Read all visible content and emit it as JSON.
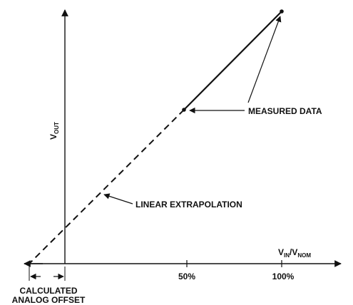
{
  "diagram": {
    "y_axis": {
      "label_main": "V",
      "label_sub": "OUT"
    },
    "x_axis": {
      "label_main_1": "V",
      "label_sub_1": "IN",
      "label_sep": "/V",
      "label_sub_2": "NOM",
      "ticks": [
        "50%",
        "100%"
      ]
    },
    "annotations": {
      "measured_data": "MEASURED DATA",
      "linear_extrapolation": "LINEAR EXTRAPOLATION",
      "offset_line1": "CALCULATED",
      "offset_line2": "ANALOG OFFSET"
    },
    "measured_points": [
      {
        "x": 50,
        "label": "50%"
      },
      {
        "x": 100,
        "label": "100%"
      }
    ]
  }
}
